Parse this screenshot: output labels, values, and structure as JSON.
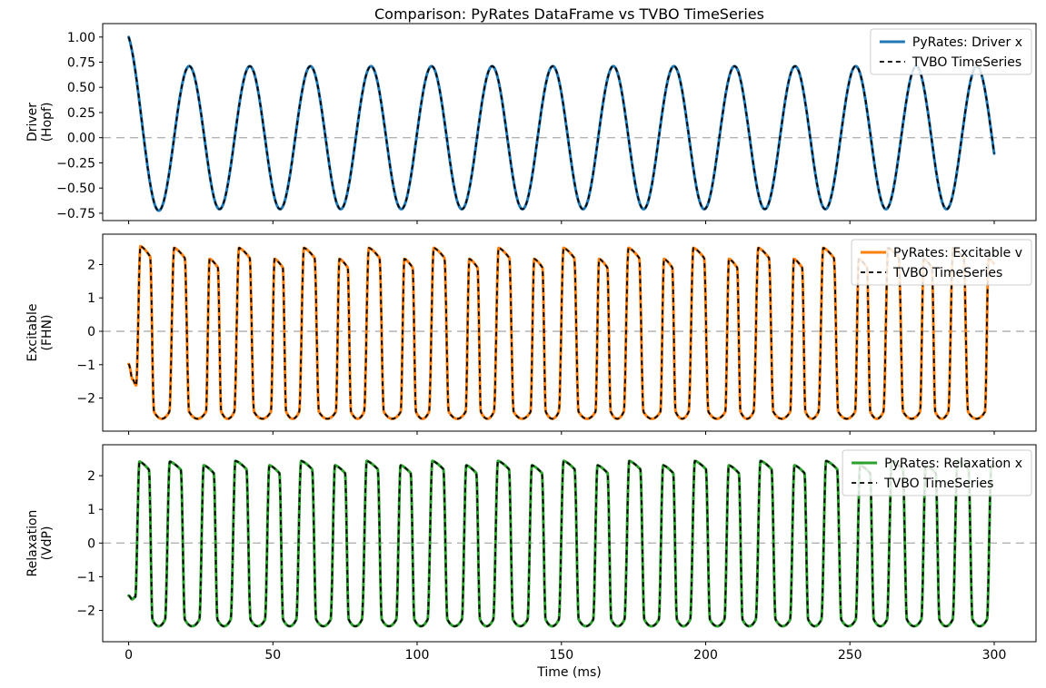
{
  "title": "Comparison: PyRates DataFrame vs TVBO TimeSeries",
  "chart_data": {
    "type": "line",
    "title": "Comparison: PyRates DataFrame vs TVBO TimeSeries",
    "xlabel": "Time (ms)",
    "xlim": [
      -9,
      314.5
    ],
    "xticks": [
      {
        "v": 0,
        "label": "0"
      },
      {
        "v": 50,
        "label": "50"
      },
      {
        "v": 100,
        "label": "100"
      },
      {
        "v": 150,
        "label": "150"
      },
      {
        "v": 200,
        "label": "200"
      },
      {
        "v": 250,
        "label": "250"
      },
      {
        "v": 300,
        "label": "300"
      }
    ],
    "grid": false,
    "legend_position": "upper right",
    "styles": {
      "zero_line_color": "#b3b3b3",
      "spine_color": "#000000",
      "overlay_dash_color": "#000000",
      "legend_border": "#cccccc",
      "background": "#ffffff"
    },
    "subplots": [
      {
        "ylabel_lines": [
          "Driver",
          "(Hopf)"
        ],
        "ylim": [
          -0.823,
          1.133
        ],
        "yticks": [
          {
            "v": 1.0,
            "label": "1.00"
          },
          {
            "v": 0.75,
            "label": "0.75"
          },
          {
            "v": 0.5,
            "label": "0.50"
          },
          {
            "v": 0.25,
            "label": "0.25"
          },
          {
            "v": 0.0,
            "label": "0.00"
          },
          {
            "v": -0.25,
            "label": "−0.25"
          },
          {
            "v": -0.5,
            "label": "−0.50"
          },
          {
            "v": -0.75,
            "label": "−0.75"
          }
        ],
        "zero_line": true,
        "series": [
          {
            "name": "PyRates: Driver x",
            "style": "solid",
            "color": "#1f77b4"
          },
          {
            "name": "TVBO TimeSeries",
            "style": "dashed",
            "color": "#000000"
          }
        ],
        "model": {
          "kind": "damped_cosine",
          "start_value": 1.0,
          "steady_amplitude": 0.71,
          "decay_tau_ms": 3.5,
          "period_ms": 21.0,
          "t_end_ms": 300,
          "end_value_approx": -0.32
        }
      },
      {
        "ylabel_lines": [
          "Excitable",
          "(FHN)"
        ],
        "ylim": [
          -2.99,
          2.91
        ],
        "yticks": [
          {
            "v": 2,
            "label": "2"
          },
          {
            "v": 1,
            "label": "1"
          },
          {
            "v": 0,
            "label": "0"
          },
          {
            "v": -1,
            "label": "−1"
          },
          {
            "v": -2,
            "label": "−2"
          }
        ],
        "zero_line": true,
        "series": [
          {
            "name": "PyRates: Excitable v",
            "style": "solid",
            "color": "#ff7f0e"
          },
          {
            "name": "TVBO TimeSeries",
            "style": "dashed",
            "color": "#000000"
          }
        ],
        "model": {
          "kind": "relaxation",
          "pre_points": [
            [
              0,
              -0.98
            ],
            [
              1.4,
              -1.45
            ],
            [
              2.6,
              -1.62
            ]
          ],
          "first_cycle_ms": 11.5,
          "alt_cycle_ms": [
            12.7,
            9.8
          ],
          "peak_heights": {
            "first": 2.55,
            "second": 2.5,
            "tall": 2.5,
            "short": 2.17
          },
          "trough": -2.62,
          "rise_frac": 0.13,
          "top_end_frac": 0.42,
          "fall_end_frac": 0.54,
          "top_droop": 0.88,
          "t_end_ms": 300
        }
      },
      {
        "ylabel_lines": [
          "Relaxation",
          "(VdP)"
        ],
        "ylim": [
          -2.93,
          2.92
        ],
        "yticks": [
          {
            "v": 2,
            "label": "2"
          },
          {
            "v": 1,
            "label": "1"
          },
          {
            "v": 0,
            "label": "0"
          },
          {
            "v": -1,
            "label": "−1"
          },
          {
            "v": -2,
            "label": "−2"
          }
        ],
        "zero_line": true,
        "series": [
          {
            "name": "PyRates: Relaxation x",
            "style": "solid",
            "color": "#2ca02c"
          },
          {
            "name": "TVBO TimeSeries",
            "style": "dashed",
            "color": "#000000"
          }
        ],
        "model": {
          "kind": "relaxation",
          "pre_points": [
            [
              0,
              -1.56
            ],
            [
              1.2,
              -1.67
            ],
            [
              2.3,
              -1.6
            ]
          ],
          "first_cycle_ms": 10.3,
          "alt_cycle_ms": [
            11.9,
            10.85
          ],
          "peak_heights": {
            "first": 2.42,
            "second": 2.42,
            "tall": 2.44,
            "short": 2.31
          },
          "trough": -2.47,
          "rise_frac": 0.14,
          "top_end_frac": 0.46,
          "fall_end_frac": 0.58,
          "top_droop": 0.9,
          "t_end_ms": 300
        }
      }
    ]
  }
}
